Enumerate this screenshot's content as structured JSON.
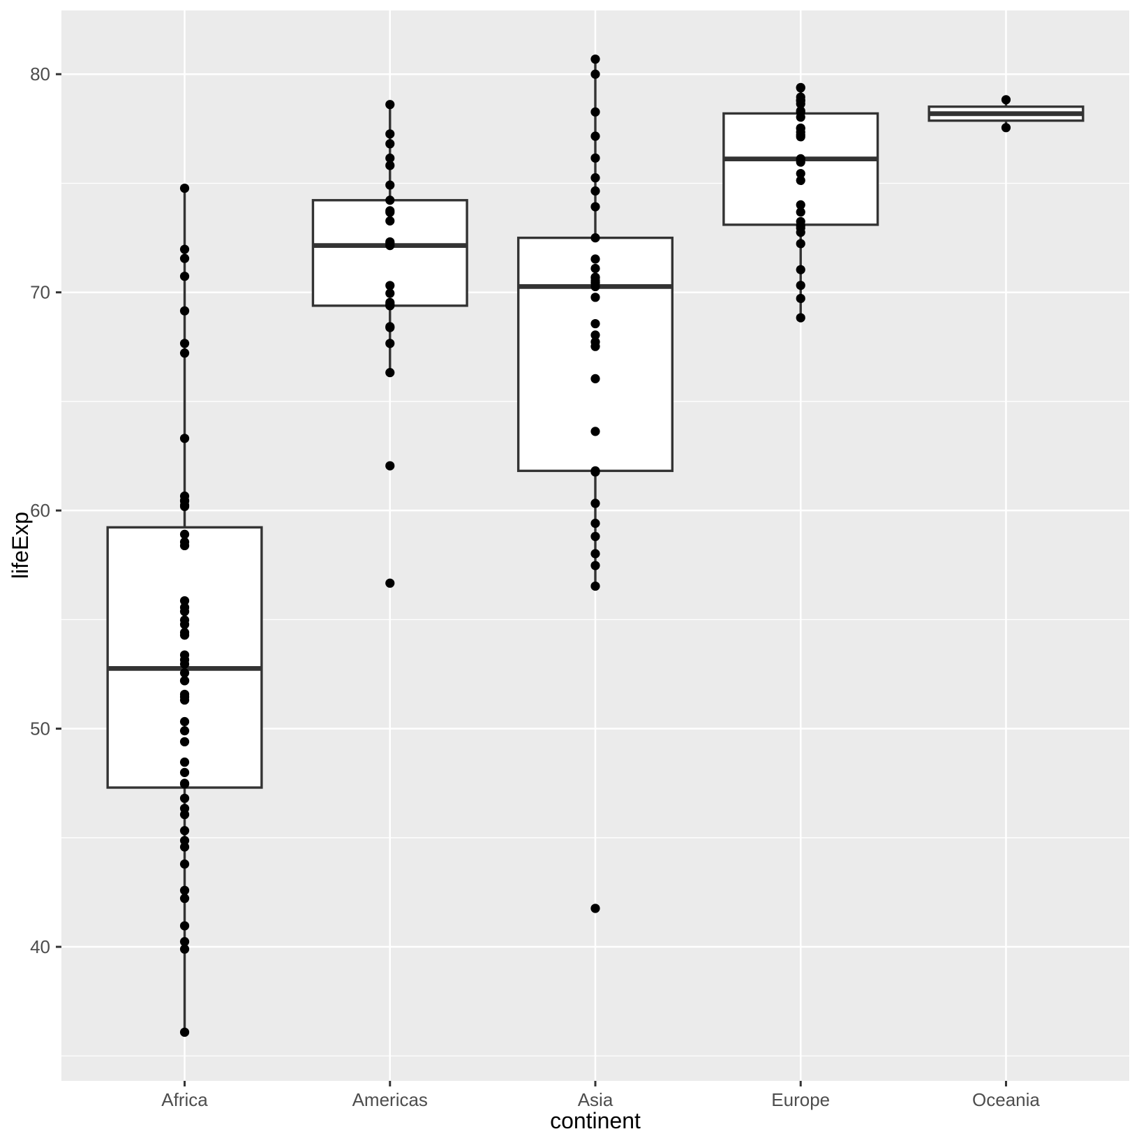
{
  "chart_data": {
    "type": "boxplot",
    "title": "",
    "xlabel": "continent",
    "ylabel": "lifeExp",
    "categories": [
      "Africa",
      "Americas",
      "Asia",
      "Europe",
      "Oceania"
    ],
    "y_ticks": [
      40,
      50,
      60,
      70,
      80
    ],
    "y_tick_labels": [
      "40",
      "50",
      "60",
      "70",
      "80"
    ],
    "y_minor_ticks": [
      35,
      45,
      55,
      65,
      75
    ],
    "ylim": [
      33.857,
      82.92
    ],
    "grid": "white major+minor horizontal lines, white major vertical line at each category, grey panel",
    "legend": "none",
    "series": [
      {
        "name": "Africa",
        "box": {
          "lower_whisker": 36.087,
          "q1": 47.3,
          "median": 52.759,
          "q3": 59.229,
          "upper_whisker": 74.772,
          "outliers": []
        },
        "points": [
          69.152,
          40.963,
          54.777,
          52.556,
          50.324,
          45.326,
          52.199,
          46.066,
          51.573,
          60.66,
          42.587,
          52.962,
          47.991,
          53.157,
          67.217,
          52.199,
          53.378,
          49.402,
          60.461,
          55.861,
          58.556,
          51.455,
          44.873,
          54.407,
          55.558,
          42.221,
          71.555,
          54.978,
          47.495,
          49.903,
          60.43,
          70.736,
          67.66,
          46.344,
          58.909,
          51.313,
          47.464,
          74.772,
          36.087,
          63.306,
          60.187,
          39.897,
          43.795,
          60.236,
          55.373,
          54.289,
          48.466,
          58.39,
          71.973,
          44.578,
          40.238,
          46.809
        ]
      },
      {
        "name": "Americas",
        "box": {
          "lower_whisker": 66.322,
          "q1": 69.388,
          "median": 72.146,
          "q3": 74.223,
          "upper_whisker": 78.61,
          "outliers": [
            62.05,
            56.671
          ]
        },
        "points": [
          73.275,
          62.05,
          69.388,
          78.61,
          75.816,
          70.313,
          77.26,
          76.151,
          69.957,
          72.312,
          69.535,
          66.322,
          56.671,
          67.659,
          72.262,
          73.67,
          68.426,
          73.738,
          69.4,
          68.386,
          74.917,
          69.465,
          76.81,
          74.223,
          72.146
        ]
      },
      {
        "name": "Asia",
        "box": {
          "lower_whisker": 56.534,
          "q1": 61.818,
          "median": 70.265,
          "q3": 72.499,
          "upper_whisker": 80.69,
          "outliers": [
            41.763
          ]
        },
        "points": [
          41.763,
          73.925,
          59.412,
          56.534,
          70.426,
          80.0,
          61.765,
          66.041,
          68.042,
          58.811,
          78.269,
          80.69,
          69.772,
          67.727,
          74.647,
          76.156,
          70.265,
          70.693,
          63.625,
          60.328,
          57.479,
          72.499,
          61.818,
          68.564,
          70.533,
          77.158,
          70.457,
          71.527,
          75.25,
          67.521,
          70.672,
          71.096,
          58.02
        ]
      },
      {
        "name": "Europe",
        "box": {
          "lower_whisker": 68.835,
          "q1": 73.099,
          "median": 76.116,
          "q3": 78.2,
          "upper_whisker": 79.39,
          "outliers": []
        },
        "points": [
          72.95,
          77.51,
          77.53,
          73.244,
          70.32,
          73.68,
          74.01,
          76.11,
          77.13,
          78.64,
          77.34,
          78.256,
          71.04,
          78.95,
          76.122,
          78.82,
          75.445,
          78.03,
          78.32,
          72.75,
          75.97,
          69.72,
          72.232,
          73.05,
          75.13,
          78.77,
          79.39,
          79.37,
          68.835,
          77.218
        ]
      },
      {
        "name": "Oceania",
        "box": {
          "lower_whisker": 77.55,
          "q1": 77.87,
          "median": 78.19,
          "q3": 78.51,
          "upper_whisker": 78.83,
          "outliers": []
        },
        "points": [
          78.83,
          77.55
        ]
      }
    ],
    "style": {
      "panel_bg": "#EBEBEB",
      "grid_color": "#FFFFFF",
      "box_stroke": "#333333",
      "box_fill": "#FFFFFF",
      "point_color": "#000000",
      "tick_text_color": "#4D4D4D",
      "axis_title_color": "#000000",
      "tick_mark_color": "#333333"
    }
  }
}
